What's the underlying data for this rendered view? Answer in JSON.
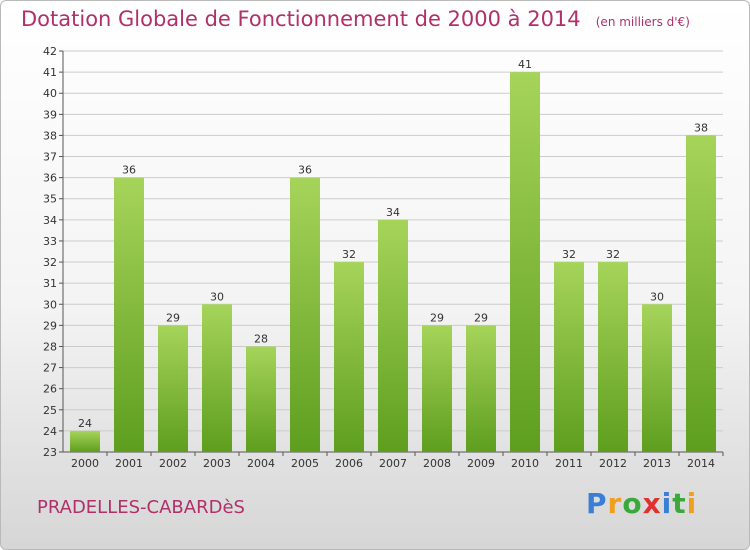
{
  "header": {
    "title": "Dotation Globale de Fonctionnement de 2000 à 2014",
    "unit": "(en milliers d'€)"
  },
  "footer": {
    "commune": "PRADELLES-CABARDèS",
    "brand_letters": [
      "P",
      "r",
      "o",
      "x",
      "i",
      "t",
      "i"
    ],
    "brand_colors": [
      "#3a7fd5",
      "#f0a020",
      "#3aa83a",
      "#e03030",
      "#3a7fd5",
      "#3aa83a",
      "#f0a020"
    ]
  },
  "colors": {
    "bar_top": "#a6d45a",
    "bar_bottom": "#5e9e1e",
    "grid": "#cccccc",
    "title": "#b0306a"
  },
  "chart_data": {
    "type": "bar",
    "title": "Dotation Globale de Fonctionnement de 2000 à 2014",
    "xlabel": "",
    "ylabel": "",
    "categories": [
      "2000",
      "2001",
      "2002",
      "2003",
      "2004",
      "2005",
      "2006",
      "2007",
      "2008",
      "2009",
      "2010",
      "2011",
      "2012",
      "2013",
      "2014"
    ],
    "values": [
      24,
      36,
      29,
      30,
      28,
      36,
      32,
      34,
      29,
      29,
      41,
      32,
      32,
      30,
      38
    ],
    "ylim": [
      23,
      42
    ],
    "yticks": [
      23,
      24,
      25,
      26,
      27,
      28,
      29,
      30,
      31,
      32,
      33,
      34,
      35,
      36,
      37,
      38,
      39,
      40,
      41,
      42
    ],
    "grid": true,
    "legend": "none"
  }
}
